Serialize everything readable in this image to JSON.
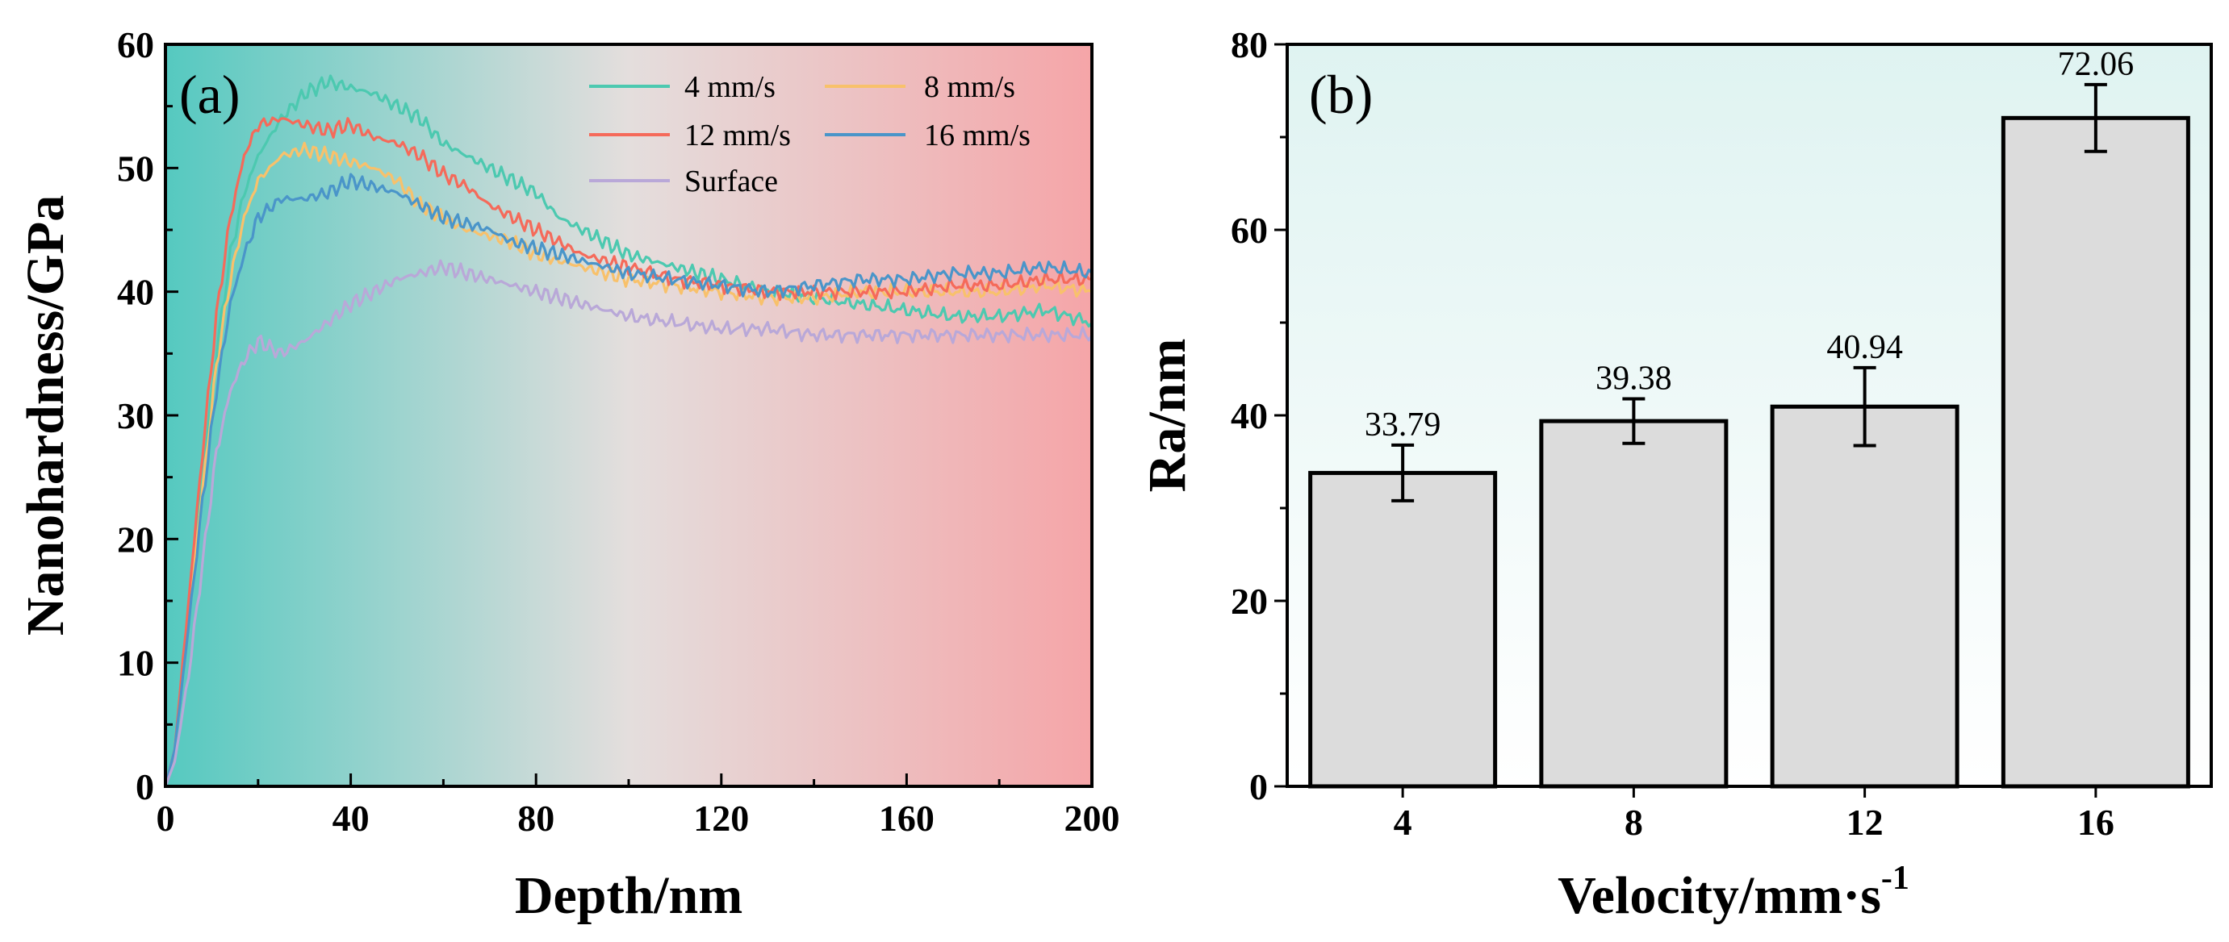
{
  "chart_data": [
    {
      "type": "line",
      "panel_label": "(a)",
      "xlabel": "Depth/nm",
      "ylabel": "Nanohardness/GPa",
      "xlim": [
        0,
        200
      ],
      "ylim": [
        0,
        60
      ],
      "xticks": [
        0,
        40,
        80,
        120,
        160,
        200
      ],
      "yticks": [
        0,
        10,
        20,
        30,
        40,
        50,
        60
      ],
      "legend": {
        "placement": "top-right",
        "columns": 2
      },
      "background_gradient": {
        "from": "#55c9c0",
        "to": "#f5a5a8"
      },
      "series": [
        {
          "name": "4 mm/s",
          "color": "#4cc9b0",
          "x": [
            0,
            2,
            5,
            8,
            11,
            14,
            17,
            20,
            25,
            30,
            35,
            40,
            45,
            50,
            55,
            60,
            65,
            70,
            75,
            80,
            85,
            90,
            95,
            100,
            105,
            110,
            115,
            120,
            130,
            140,
            150,
            160,
            170,
            180,
            190,
            200
          ],
          "y": [
            0,
            3,
            14,
            25,
            35,
            43,
            48,
            51,
            54,
            56,
            57,
            56.5,
            56,
            55,
            54,
            52,
            51,
            50,
            49,
            48,
            46,
            45,
            44,
            43,
            42.5,
            42,
            41.5,
            41,
            40,
            39.5,
            39,
            38.5,
            38,
            38,
            38.5,
            37.5
          ]
        },
        {
          "name": "8 mm/s",
          "color": "#f8c16b",
          "x": [
            0,
            2,
            5,
            8,
            11,
            14,
            17,
            20,
            25,
            30,
            35,
            40,
            45,
            50,
            55,
            60,
            65,
            70,
            75,
            80,
            85,
            90,
            95,
            100,
            110,
            120,
            130,
            140,
            150,
            160,
            170,
            180,
            190,
            200
          ],
          "y": [
            0,
            3,
            14,
            24,
            34,
            41,
            46,
            49,
            51,
            51.5,
            51,
            50.5,
            50,
            49,
            47,
            46,
            45,
            44.5,
            44,
            43,
            42.5,
            42,
            41.5,
            41,
            40.5,
            40,
            39.5,
            39.5,
            40,
            40,
            40,
            40,
            40.5,
            40
          ]
        },
        {
          "name": "12 mm/s",
          "color": "#f56a5a",
          "x": [
            0,
            2,
            5,
            8,
            11,
            14,
            17,
            20,
            25,
            30,
            35,
            40,
            45,
            50,
            55,
            60,
            65,
            70,
            75,
            80,
            85,
            90,
            95,
            100,
            110,
            120,
            130,
            140,
            150,
            160,
            170,
            180,
            190,
            200
          ],
          "y": [
            0,
            3,
            15,
            27,
            38,
            46,
            51,
            53.5,
            54,
            53.5,
            53,
            53.5,
            52.5,
            52,
            51,
            49.5,
            48.5,
            47,
            46,
            45,
            44,
            43,
            42.5,
            42,
            41,
            40.5,
            40,
            40,
            40,
            40,
            40.5,
            40.5,
            41,
            41
          ]
        },
        {
          "name": "16 mm/s",
          "color": "#4a95c9",
          "x": [
            0,
            2,
            5,
            8,
            11,
            14,
            17,
            20,
            25,
            30,
            35,
            40,
            45,
            50,
            55,
            60,
            65,
            70,
            75,
            80,
            85,
            90,
            95,
            100,
            110,
            120,
            130,
            140,
            150,
            160,
            170,
            180,
            190,
            200
          ],
          "y": [
            0,
            3,
            13,
            23,
            32,
            39,
            43,
            46,
            47.5,
            47.5,
            48,
            49,
            48.5,
            48,
            47,
            46,
            45.5,
            45,
            44,
            43.5,
            43,
            42.5,
            42,
            41.5,
            41,
            40.5,
            40,
            40.5,
            41,
            41,
            41.5,
            41.5,
            42,
            41.5
          ]
        },
        {
          "name": "Surface",
          "color": "#b9a8d8",
          "x": [
            0,
            2,
            5,
            8,
            11,
            14,
            17,
            20,
            25,
            30,
            35,
            40,
            45,
            50,
            55,
            60,
            65,
            70,
            75,
            80,
            85,
            90,
            95,
            100,
            110,
            120,
            130,
            140,
            150,
            160,
            170,
            180,
            190,
            200
          ],
          "y": [
            0,
            2,
            9,
            18,
            27,
            32,
            34.5,
            36,
            35,
            36,
            37.5,
            39,
            40,
            41,
            41.5,
            42,
            41.5,
            41,
            40.5,
            40,
            39.5,
            39,
            38.5,
            38,
            37.5,
            37,
            37,
            36.5,
            36.5,
            36.5,
            36.5,
            36.5,
            36.5,
            36.5
          ]
        }
      ]
    },
    {
      "type": "bar",
      "panel_label": "(b)",
      "xlabel": "Velocity/mm·s",
      "xlabel_superscript": "-1",
      "ylabel": "Ra/nm",
      "ylim": [
        0,
        80
      ],
      "yticks": [
        0,
        20,
        40,
        60,
        80
      ],
      "categories": [
        "4",
        "8",
        "12",
        "16"
      ],
      "values": [
        33.79,
        39.38,
        40.94,
        72.06
      ],
      "value_labels": [
        "33.79",
        "39.38",
        "40.94",
        "72.06"
      ],
      "error": [
        3.0,
        2.4,
        4.2,
        3.6
      ],
      "bar_color": "#dcdcdc",
      "edge_color": "#000000",
      "background_gradient": {
        "from": "#dff3f1",
        "to": "#ffffff"
      }
    }
  ]
}
